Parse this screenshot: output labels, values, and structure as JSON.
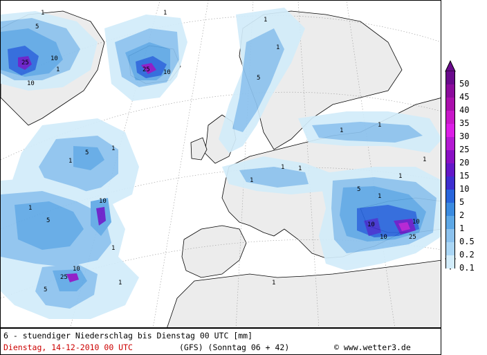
{
  "map": {
    "colors": {
      "ocean": "#ffffff",
      "land": "#ececec",
      "p01": "#d2ecfa",
      "p02": "#aad6f5",
      "p05": "#8cc2ee",
      "p1": "#5ea8e6",
      "p2": "#3b8be0",
      "p5": "#2865dc",
      "p10": "#3e2fd0",
      "p15": "#6418c8",
      "p20": "#8a10c4",
      "p25": "#b41ad2"
    },
    "labels": [
      "1",
      "5",
      "10",
      "25",
      "1",
      "10",
      "25",
      "10",
      "1",
      "5",
      "1",
      "1",
      "1",
      "1",
      "5",
      "1",
      "1",
      "1",
      "1",
      "1",
      "1",
      "5",
      "10",
      "25",
      "10",
      "5",
      "1",
      "1",
      "1",
      "5",
      "10",
      "10",
      "25",
      "10",
      "1",
      "1",
      "1"
    ]
  },
  "legend": {
    "items": [
      {
        "label": "50",
        "color": "#6a0a8c"
      },
      {
        "label": "45",
        "color": "#8c0c9c"
      },
      {
        "label": "40",
        "color": "#aa10ac"
      },
      {
        "label": "35",
        "color": "#c818c8"
      },
      {
        "label": "30",
        "color": "#dc1ee6"
      },
      {
        "label": "25",
        "color": "#b41ad2"
      },
      {
        "label": "20",
        "color": "#8a10c4"
      },
      {
        "label": "15",
        "color": "#6418c8"
      },
      {
        "label": "10",
        "color": "#3e2fd0"
      },
      {
        "label": "5",
        "color": "#2865dc"
      },
      {
        "label": "2",
        "color": "#3b8be0"
      },
      {
        "label": "1",
        "color": "#5ea8e6"
      },
      {
        "label": "0.5",
        "color": "#8cc2ee"
      },
      {
        "label": "0.2",
        "color": "#aad6f5"
      },
      {
        "label": "0.1",
        "color": "#d2ecfa"
      }
    ]
  },
  "footer": {
    "title": "6 - stuendiger Niederschlag bis Dienstag 00 UTC [mm]",
    "date": "Dienstag, 14-12-2010   00 UTC",
    "model": "(GFS)  (Sonntag 06 + 42)",
    "credit": "© www.wetter3.de"
  }
}
